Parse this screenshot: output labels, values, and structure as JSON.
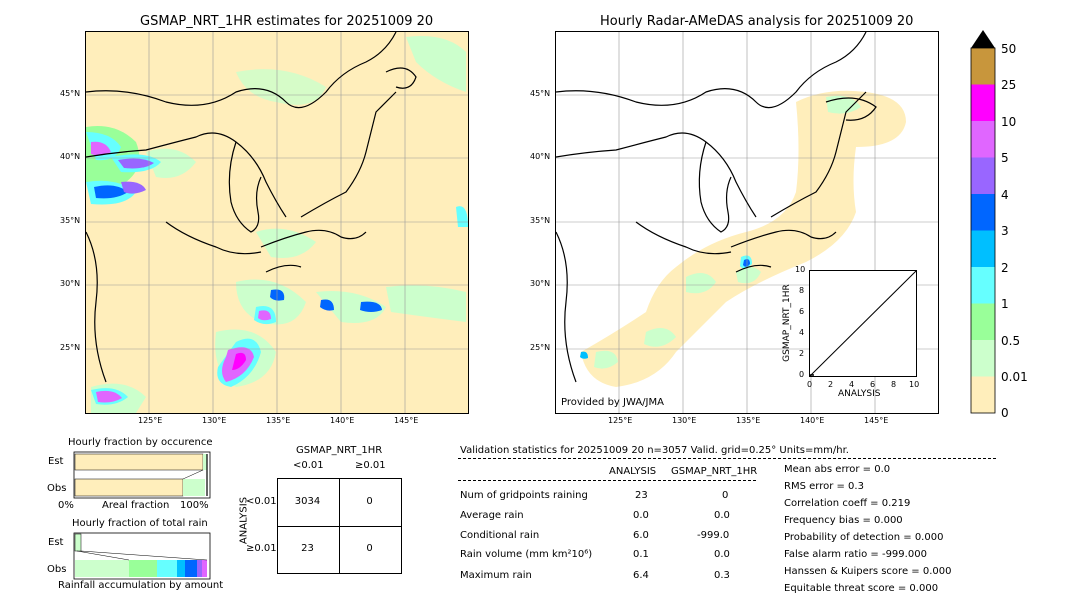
{
  "map_left": {
    "title": "GSMAP_NRT_1HR estimates for 20251009 20",
    "lat_labels": [
      "45°N",
      "40°N",
      "35°N",
      "30°N",
      "25°N"
    ],
    "lon_labels": [
      "125°E",
      "130°E",
      "135°E",
      "140°E",
      "145°E"
    ]
  },
  "map_right": {
    "title": "Hourly Radar-AMeDAS analysis for 20251009 20",
    "lat_labels": [
      "45°N",
      "40°N",
      "35°N",
      "30°N",
      "25°N"
    ],
    "lon_labels": [
      "125°E",
      "130°E",
      "135°E",
      "140°E",
      "145°E"
    ],
    "provider": "Provided by JWA/JMA"
  },
  "inset": {
    "ylabel": "GSMAP_NRT_1HR",
    "xlabel": "ANALYSIS",
    "ticks": [
      "0",
      "2",
      "4",
      "6",
      "8",
      "10"
    ]
  },
  "colorbar": {
    "labels": [
      "50",
      "25",
      "10",
      "5",
      "4",
      "3",
      "2",
      "1",
      "0.5",
      "0.01",
      "0"
    ],
    "colors": [
      "#c8963c",
      "#ff00ff",
      "#e066ff",
      "#9966ff",
      "#0066ff",
      "#00bfff",
      "#66ffff",
      "#99ff99",
      "#ccffcc",
      "#ffeebb"
    ]
  },
  "fraction_panel": {
    "title_occ": "Hourly fraction by occurence",
    "est_label": "Est",
    "obs_label": "Obs",
    "axis_left": "0%",
    "axis_mid": "Areal fraction",
    "axis_right": "100%",
    "title_total": "Hourly fraction of total rain",
    "est_label2": "Est",
    "obs_label2": "Obs",
    "footer": "Rainfall accumulation by amount"
  },
  "contingency": {
    "title": "GSMAP_NRT_1HR",
    "col_lt": "<0.01",
    "col_ge": "≥0.01",
    "row_axis": "ANALYSIS",
    "row_lt": "<0.01",
    "row_ge": "≥0.01",
    "cells": [
      "3034",
      "0",
      "23",
      "0"
    ]
  },
  "validation": {
    "header": "Validation statistics for 20251009 20  n=3057 Valid. grid=0.25°  Units=mm/hr.",
    "col_analysis": "ANALYSIS",
    "col_gsmap": "GSMAP_NRT_1HR",
    "rows": [
      {
        "label": "Num of gridpoints raining",
        "analysis": "23",
        "gsmap": "0"
      },
      {
        "label": "Average rain",
        "analysis": "0.0",
        "gsmap": "0.0"
      },
      {
        "label": "Conditional rain",
        "analysis": "6.0",
        "gsmap": "-999.0"
      },
      {
        "label": "Rain volume (mm km²10⁶)",
        "analysis": "0.1",
        "gsmap": "0.0"
      },
      {
        "label": "Maximum rain",
        "analysis": "6.4",
        "gsmap": "0.3"
      }
    ],
    "scores": [
      "Mean abs error =    0.0",
      "RMS error =    0.3",
      "Correlation coeff =  0.219",
      "Frequency bias =  0.000",
      "Probability of detection =  0.000",
      "False alarm ratio = -999.000",
      "Hanssen & Kuipers score =  0.000",
      "Equitable threat score =  0.000"
    ]
  },
  "chart_data": {
    "type": "table",
    "title": "Validation statistics for 20251009 20",
    "contingency": {
      "rows": [
        "<0.01",
        "≥0.01"
      ],
      "cols": [
        "<0.01",
        "≥0.01"
      ],
      "values": [
        [
          3034,
          0
        ],
        [
          23,
          0
        ]
      ]
    },
    "statistics": {
      "num_gridpoints_raining": {
        "analysis": 23,
        "gsmap": 0
      },
      "average_rain": {
        "analysis": 0.0,
        "gsmap": 0.0
      },
      "conditional_rain": {
        "analysis": 6.0,
        "gsmap": -999.0
      },
      "rain_volume": {
        "analysis": 0.1,
        "gsmap": 0.0
      },
      "maximum_rain": {
        "analysis": 6.4,
        "gsmap": 0.3
      }
    }
  }
}
